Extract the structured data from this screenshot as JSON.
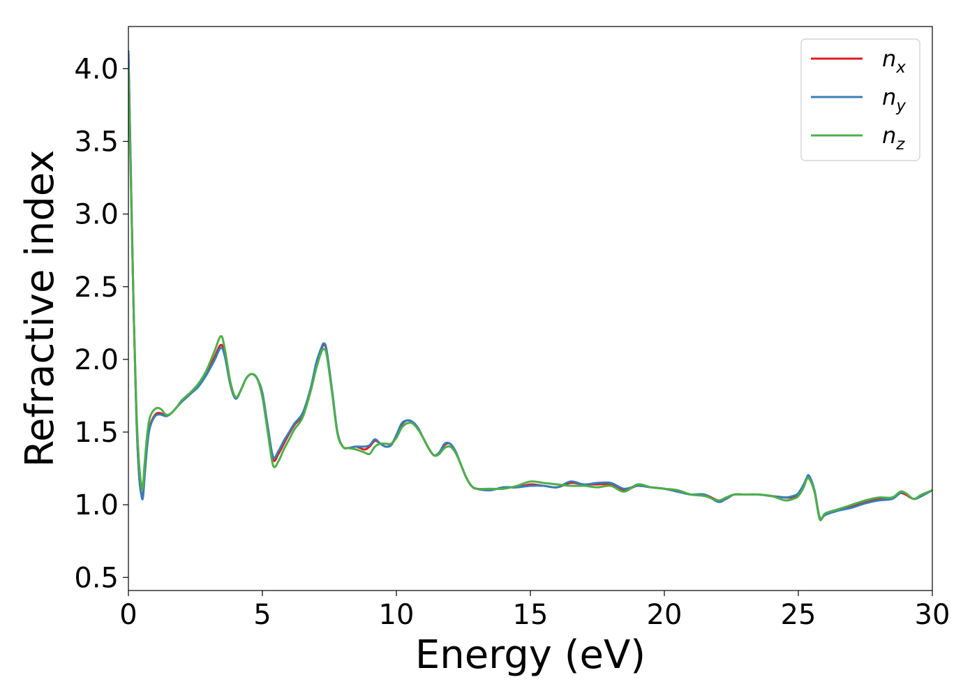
{
  "chart_data": {
    "type": "line",
    "title": "",
    "xlabel": "Energy (eV)",
    "ylabel": "Refractive index",
    "xlim": [
      0,
      30
    ],
    "ylim": [
      0.41,
      4.29
    ],
    "xticks": [
      0,
      5,
      10,
      15,
      20,
      25,
      30
    ],
    "xtick_labels": [
      "0",
      "5",
      "10",
      "15",
      "20",
      "25",
      "30"
    ],
    "yticks": [
      0.5,
      1.0,
      1.5,
      2.0,
      2.5,
      3.0,
      3.5,
      4.0
    ],
    "ytick_labels": [
      "0.5",
      "1.0",
      "1.5",
      "2.0",
      "2.5",
      "3.0",
      "3.5",
      "4.0"
    ],
    "grid": false,
    "legend_position": "top-right",
    "x": [
      0,
      0.1,
      0.2,
      0.3,
      0.4,
      0.5,
      0.55,
      0.6,
      0.7,
      0.8,
      1.0,
      1.2,
      1.4,
      1.6,
      1.8,
      2.0,
      2.3,
      2.6,
      2.9,
      3.2,
      3.45,
      3.6,
      3.8,
      4.0,
      4.2,
      4.4,
      4.6,
      4.8,
      5.0,
      5.2,
      5.4,
      5.6,
      5.8,
      6.0,
      6.2,
      6.5,
      6.8,
      7.0,
      7.2,
      7.3,
      7.4,
      7.6,
      7.8,
      8.0,
      8.2,
      8.5,
      8.8,
      9.0,
      9.2,
      9.4,
      9.6,
      9.8,
      10.0,
      10.2,
      10.4,
      10.6,
      10.8,
      11.0,
      11.2,
      11.4,
      11.6,
      11.8,
      12.0,
      12.2,
      12.4,
      12.6,
      12.8,
      13.0,
      13.5,
      14.0,
      14.5,
      15.0,
      15.5,
      16.0,
      16.5,
      17.0,
      17.5,
      18.0,
      18.5,
      19.0,
      19.5,
      20.0,
      20.5,
      21.0,
      21.5,
      22.0,
      22.3,
      22.6,
      23.0,
      23.5,
      24.0,
      24.5,
      24.8,
      25.0,
      25.2,
      25.3,
      25.4,
      25.6,
      25.8,
      26.0,
      26.5,
      27.0,
      27.5,
      28.0,
      28.5,
      28.8,
      29.0,
      29.3,
      29.6,
      30.0
    ],
    "series": [
      {
        "name": "n_x",
        "color": "#e41a1c",
        "values": [
          4.12,
          3.2,
          2.3,
          1.6,
          1.2,
          1.06,
          1.08,
          1.2,
          1.42,
          1.54,
          1.62,
          1.63,
          1.61,
          1.63,
          1.67,
          1.71,
          1.76,
          1.82,
          1.9,
          2.01,
          2.1,
          2.03,
          1.83,
          1.73,
          1.79,
          1.87,
          1.9,
          1.87,
          1.76,
          1.52,
          1.31,
          1.35,
          1.42,
          1.49,
          1.55,
          1.62,
          1.8,
          1.96,
          2.07,
          2.1,
          2.05,
          1.78,
          1.5,
          1.4,
          1.39,
          1.4,
          1.38,
          1.4,
          1.44,
          1.42,
          1.4,
          1.41,
          1.47,
          1.55,
          1.58,
          1.57,
          1.53,
          1.46,
          1.39,
          1.34,
          1.35,
          1.41,
          1.42,
          1.37,
          1.28,
          1.19,
          1.13,
          1.11,
          1.1,
          1.12,
          1.12,
          1.14,
          1.13,
          1.12,
          1.15,
          1.14,
          1.14,
          1.14,
          1.1,
          1.13,
          1.12,
          1.11,
          1.09,
          1.07,
          1.07,
          1.03,
          1.04,
          1.07,
          1.07,
          1.07,
          1.06,
          1.05,
          1.05,
          1.07,
          1.13,
          1.18,
          1.19,
          1.1,
          0.91,
          0.93,
          0.97,
          0.99,
          1.02,
          1.04,
          1.05,
          1.08,
          1.07,
          1.04,
          1.06,
          1.1
        ]
      },
      {
        "name": "n_y",
        "color": "#377eb8",
        "values": [
          4.12,
          3.2,
          2.3,
          1.6,
          1.2,
          1.05,
          1.06,
          1.18,
          1.4,
          1.53,
          1.61,
          1.62,
          1.61,
          1.63,
          1.67,
          1.71,
          1.76,
          1.81,
          1.89,
          1.99,
          2.08,
          2.02,
          1.83,
          1.73,
          1.79,
          1.87,
          1.9,
          1.87,
          1.77,
          1.54,
          1.33,
          1.37,
          1.44,
          1.5,
          1.56,
          1.63,
          1.8,
          1.97,
          2.08,
          2.11,
          2.06,
          1.79,
          1.5,
          1.4,
          1.39,
          1.4,
          1.4,
          1.41,
          1.45,
          1.42,
          1.4,
          1.41,
          1.48,
          1.56,
          1.58,
          1.57,
          1.53,
          1.46,
          1.39,
          1.34,
          1.36,
          1.42,
          1.42,
          1.37,
          1.28,
          1.19,
          1.13,
          1.11,
          1.1,
          1.12,
          1.12,
          1.13,
          1.13,
          1.12,
          1.16,
          1.14,
          1.15,
          1.15,
          1.11,
          1.13,
          1.12,
          1.11,
          1.09,
          1.07,
          1.07,
          1.02,
          1.04,
          1.07,
          1.07,
          1.07,
          1.06,
          1.05,
          1.06,
          1.08,
          1.14,
          1.18,
          1.2,
          1.1,
          0.91,
          0.93,
          0.96,
          0.98,
          1.01,
          1.03,
          1.04,
          1.08,
          1.08,
          1.04,
          1.06,
          1.1
        ]
      },
      {
        "name": "n_z",
        "color": "#4daf4a",
        "values": [
          4.0,
          3.15,
          2.3,
          1.65,
          1.28,
          1.12,
          1.14,
          1.27,
          1.48,
          1.6,
          1.66,
          1.66,
          1.62,
          1.63,
          1.67,
          1.72,
          1.77,
          1.83,
          1.92,
          2.05,
          2.16,
          2.07,
          1.85,
          1.74,
          1.79,
          1.87,
          1.9,
          1.87,
          1.74,
          1.5,
          1.27,
          1.3,
          1.38,
          1.45,
          1.52,
          1.6,
          1.78,
          1.93,
          2.05,
          2.07,
          2.03,
          1.77,
          1.49,
          1.4,
          1.39,
          1.38,
          1.36,
          1.35,
          1.4,
          1.42,
          1.42,
          1.42,
          1.46,
          1.53,
          1.56,
          1.56,
          1.52,
          1.46,
          1.39,
          1.34,
          1.35,
          1.39,
          1.4,
          1.36,
          1.28,
          1.19,
          1.13,
          1.11,
          1.11,
          1.11,
          1.13,
          1.16,
          1.15,
          1.14,
          1.13,
          1.13,
          1.12,
          1.13,
          1.09,
          1.14,
          1.12,
          1.11,
          1.1,
          1.07,
          1.06,
          1.03,
          1.05,
          1.07,
          1.07,
          1.07,
          1.06,
          1.03,
          1.04,
          1.06,
          1.12,
          1.17,
          1.18,
          1.09,
          0.9,
          0.94,
          0.97,
          1.0,
          1.03,
          1.05,
          1.05,
          1.09,
          1.08,
          1.04,
          1.07,
          1.1
        ]
      }
    ],
    "legend": [
      {
        "base": "n",
        "sub": "x",
        "color": "#e41a1c"
      },
      {
        "base": "n",
        "sub": "y",
        "color": "#377eb8"
      },
      {
        "base": "n",
        "sub": "z",
        "color": "#4daf4a"
      }
    ]
  }
}
